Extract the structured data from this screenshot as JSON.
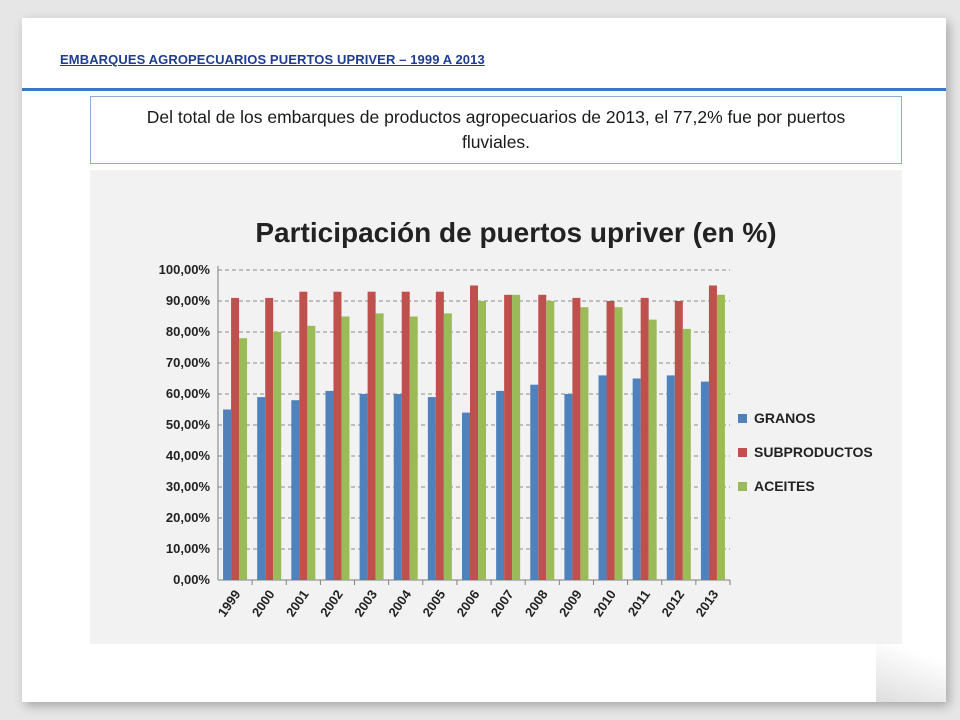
{
  "slide": {
    "title": "EMBARQUES AGROPECUARIOS PUERTOS UPRIVER – 1999 A 2013",
    "callout": "Del total de los embarques de productos agropecuarios de 2013, el 77,2% fue por puertos fluviales."
  },
  "colors": {
    "title_text": "#1f3d8f",
    "rule": "#3a78c2",
    "callout_border": "#8faed6",
    "granos": "#4f81bd",
    "subproductos": "#c0504d",
    "aceites": "#9bbb59"
  },
  "chart_data": {
    "type": "bar",
    "title": "Participación de puertos upriver (en %)",
    "xlabel": "",
    "ylabel": "",
    "ylim": [
      0,
      100
    ],
    "yticks": [
      "0,00%",
      "10,00%",
      "20,00%",
      "30,00%",
      "40,00%",
      "50,00%",
      "60,00%",
      "70,00%",
      "80,00%",
      "90,00%",
      "100,00%"
    ],
    "grid": true,
    "legend_position": "right",
    "categories": [
      "1999",
      "2000",
      "2001",
      "2002",
      "2003",
      "2004",
      "2005",
      "2006",
      "2007",
      "2008",
      "2009",
      "2010",
      "2011",
      "2012",
      "2013"
    ],
    "series": [
      {
        "name": "GRANOS",
        "color": "#4f81bd",
        "values": [
          55,
          59,
          58,
          61,
          60,
          60,
          59,
          54,
          61,
          63,
          60,
          66,
          65,
          66,
          64
        ]
      },
      {
        "name": "SUBPRODUCTOS",
        "color": "#c0504d",
        "values": [
          91,
          91,
          93,
          93,
          93,
          93,
          93,
          95,
          92,
          92,
          91,
          90,
          91,
          90,
          95
        ]
      },
      {
        "name": "ACEITES",
        "color": "#9bbb59",
        "values": [
          78,
          80,
          82,
          85,
          86,
          85,
          86,
          90,
          92,
          90,
          88,
          88,
          84,
          81,
          92
        ]
      }
    ]
  }
}
